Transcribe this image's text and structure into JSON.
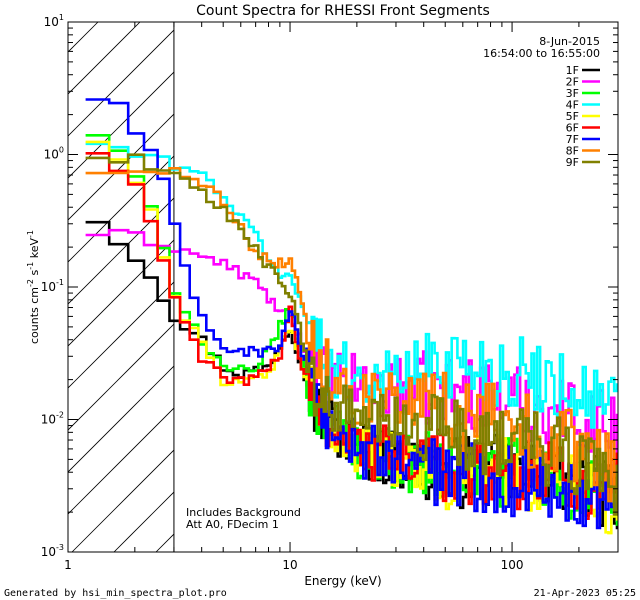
{
  "chart_data": {
    "type": "line",
    "title": "Count Spectra for RHESSI Front Segments",
    "xlabel": "Energy (keV)",
    "ylabel": "counts cm⁻² s⁻¹ keV⁻¹",
    "xscale": "log",
    "yscale": "log",
    "xlim": [
      1.0,
      300.0
    ],
    "ylim": [
      0.001,
      10.0
    ],
    "x_ticks": [
      {
        "value": 1,
        "label": "1"
      },
      {
        "value": 10,
        "label": "10"
      },
      {
        "value": 100,
        "label": "100"
      }
    ],
    "y_ticks": [
      {
        "value": 0.001,
        "base": "10",
        "exp": "-3"
      },
      {
        "value": 0.01,
        "base": "10",
        "exp": "-2"
      },
      {
        "value": 0.1,
        "base": "10",
        "exp": "-1"
      },
      {
        "value": 1,
        "base": "10",
        "exp": "0"
      },
      {
        "value": 10,
        "base": "10",
        "exp": "1"
      }
    ],
    "ylabel_parts": {
      "main": "counts cm",
      "e1": "-2",
      "mid": " s",
      "e2": "-1",
      "unit": " keV",
      "e3": "-1"
    },
    "hatched_region": {
      "x_from": 1.0,
      "x_to": 3.0
    },
    "date": "8-Jun-2015",
    "time_range": "16:54:00 to 16:55:00",
    "annotations": [
      "Includes Background",
      "Att A0, FDecim 1"
    ],
    "legend_position": "top-right",
    "series": [
      {
        "name": "1F",
        "color": "#000000",
        "profile": "flat",
        "anchors": [
          [
            1.2,
            0.38
          ],
          [
            1.5,
            0.28
          ],
          [
            2.0,
            0.17
          ],
          [
            2.5,
            0.11
          ],
          [
            3.0,
            0.06
          ],
          [
            4.0,
            0.04
          ],
          [
            5.0,
            0.025
          ],
          [
            6.0,
            0.022
          ],
          [
            8.0,
            0.025
          ],
          [
            10.0,
            0.05
          ],
          [
            11.0,
            0.03
          ],
          [
            13.0,
            0.012
          ],
          [
            20.0,
            0.006
          ],
          [
            50.0,
            0.004
          ],
          [
            100.0,
            0.004
          ],
          [
            200.0,
            0.0035
          ],
          [
            300.0,
            0.0025
          ]
        ]
      },
      {
        "name": "2F",
        "color": "#ff00ff",
        "profile": "flat",
        "anchors": [
          [
            1.2,
            0.26
          ],
          [
            2.0,
            0.24
          ],
          [
            3.0,
            0.2
          ],
          [
            5.0,
            0.15
          ],
          [
            7.0,
            0.11
          ],
          [
            9.0,
            0.065
          ],
          [
            10.0,
            0.06
          ],
          [
            12.0,
            0.03
          ],
          [
            15.0,
            0.02
          ],
          [
            25.0,
            0.018
          ],
          [
            50.0,
            0.017
          ],
          [
            100.0,
            0.014
          ],
          [
            200.0,
            0.011
          ],
          [
            300.0,
            0.0085
          ]
        ]
      },
      {
        "name": "3F",
        "color": "#00ff00",
        "profile": "flat",
        "anchors": [
          [
            1.2,
            1.6
          ],
          [
            1.5,
            1.3
          ],
          [
            2.0,
            0.7
          ],
          [
            2.5,
            0.3
          ],
          [
            3.0,
            0.1
          ],
          [
            4.0,
            0.04
          ],
          [
            5.0,
            0.025
          ],
          [
            7.0,
            0.022
          ],
          [
            9.0,
            0.05
          ],
          [
            10.0,
            0.07
          ],
          [
            11.0,
            0.035
          ],
          [
            13.0,
            0.012
          ],
          [
            20.0,
            0.006
          ],
          [
            50.0,
            0.004
          ],
          [
            100.0,
            0.004
          ],
          [
            200.0,
            0.003
          ],
          [
            300.0,
            0.0022
          ]
        ]
      },
      {
        "name": "4F",
        "color": "#00ffff",
        "profile": "flat",
        "anchors": [
          [
            1.2,
            1.3
          ],
          [
            2.0,
            1.0
          ],
          [
            3.0,
            0.85
          ],
          [
            4.0,
            0.7
          ],
          [
            5.0,
            0.5
          ],
          [
            6.0,
            0.33
          ],
          [
            7.0,
            0.25
          ],
          [
            8.0,
            0.17
          ],
          [
            9.0,
            0.12
          ],
          [
            10.0,
            0.12
          ],
          [
            12.0,
            0.06
          ],
          [
            15.0,
            0.025
          ],
          [
            25.0,
            0.02
          ],
          [
            50.0,
            0.028
          ],
          [
            80.0,
            0.024
          ],
          [
            150.0,
            0.02
          ],
          [
            300.0,
            0.012
          ]
        ]
      },
      {
        "name": "5F",
        "color": "#ffff00",
        "profile": "flat",
        "anchors": [
          [
            1.2,
            1.5
          ],
          [
            2.0,
            0.7
          ],
          [
            2.5,
            0.3
          ],
          [
            3.0,
            0.08
          ],
          [
            4.0,
            0.04
          ],
          [
            5.0,
            0.02
          ],
          [
            6.0,
            0.018
          ],
          [
            8.0,
            0.022
          ],
          [
            10.0,
            0.05
          ],
          [
            11.0,
            0.03
          ],
          [
            13.0,
            0.012
          ],
          [
            20.0,
            0.006
          ],
          [
            50.0,
            0.004
          ],
          [
            100.0,
            0.004
          ],
          [
            200.0,
            0.0035
          ],
          [
            300.0,
            0.002
          ]
        ]
      },
      {
        "name": "6F",
        "color": "#ff0000",
        "profile": "flat",
        "anchors": [
          [
            1.2,
            1.2
          ],
          [
            2.0,
            0.6
          ],
          [
            2.5,
            0.25
          ],
          [
            3.0,
            0.08
          ],
          [
            4.0,
            0.03
          ],
          [
            5.0,
            0.02
          ],
          [
            7.0,
            0.02
          ],
          [
            9.0,
            0.03
          ],
          [
            10.0,
            0.07
          ],
          [
            11.0,
            0.03
          ],
          [
            13.0,
            0.012
          ],
          [
            20.0,
            0.006
          ],
          [
            50.0,
            0.0045
          ],
          [
            100.0,
            0.004
          ],
          [
            200.0,
            0.0035
          ],
          [
            300.0,
            0.003
          ]
        ]
      },
      {
        "name": "7F",
        "color": "#0000ff",
        "profile": "flat",
        "anchors": [
          [
            1.2,
            2.6
          ],
          [
            1.7,
            2.5
          ],
          [
            2.0,
            1.5
          ],
          [
            2.5,
            1.0
          ],
          [
            3.0,
            0.3
          ],
          [
            3.5,
            0.1
          ],
          [
            4.0,
            0.06
          ],
          [
            5.0,
            0.035
          ],
          [
            7.0,
            0.032
          ],
          [
            9.0,
            0.035
          ],
          [
            10.0,
            0.07
          ],
          [
            11.0,
            0.04
          ],
          [
            13.0,
            0.012
          ],
          [
            20.0,
            0.006
          ],
          [
            50.0,
            0.004
          ],
          [
            100.0,
            0.0035
          ],
          [
            200.0,
            0.003
          ],
          [
            300.0,
            0.0025
          ]
        ]
      },
      {
        "name": "8F",
        "color": "#ff8000",
        "profile": "flat",
        "anchors": [
          [
            1.2,
            0.68
          ],
          [
            2.0,
            0.8
          ],
          [
            3.0,
            0.75
          ],
          [
            4.0,
            0.6
          ],
          [
            5.0,
            0.45
          ],
          [
            6.0,
            0.3
          ],
          [
            7.0,
            0.18
          ],
          [
            9.0,
            0.15
          ],
          [
            10.0,
            0.16
          ],
          [
            11.0,
            0.1
          ],
          [
            13.0,
            0.03
          ],
          [
            20.0,
            0.015
          ],
          [
            50.0,
            0.012
          ],
          [
            100.0,
            0.009
          ],
          [
            200.0,
            0.006
          ],
          [
            300.0,
            0.004
          ]
        ]
      },
      {
        "name": "9F",
        "color": "#808000",
        "profile": "flat",
        "anchors": [
          [
            1.2,
            0.9
          ],
          [
            2.0,
            0.95
          ],
          [
            3.0,
            0.7
          ],
          [
            4.0,
            0.5
          ],
          [
            5.0,
            0.38
          ],
          [
            6.0,
            0.28
          ],
          [
            7.0,
            0.2
          ],
          [
            8.0,
            0.14
          ],
          [
            10.0,
            0.09
          ],
          [
            11.0,
            0.05
          ],
          [
            13.0,
            0.015
          ],
          [
            20.0,
            0.01
          ],
          [
            50.0,
            0.008
          ],
          [
            100.0,
            0.007
          ],
          [
            200.0,
            0.005
          ],
          [
            300.0,
            0.0035
          ]
        ]
      }
    ]
  },
  "footer": {
    "generated_by": "Generated by hsi_min_spectra_plot.pro",
    "timestamp": "21-Apr-2023 05:25"
  }
}
